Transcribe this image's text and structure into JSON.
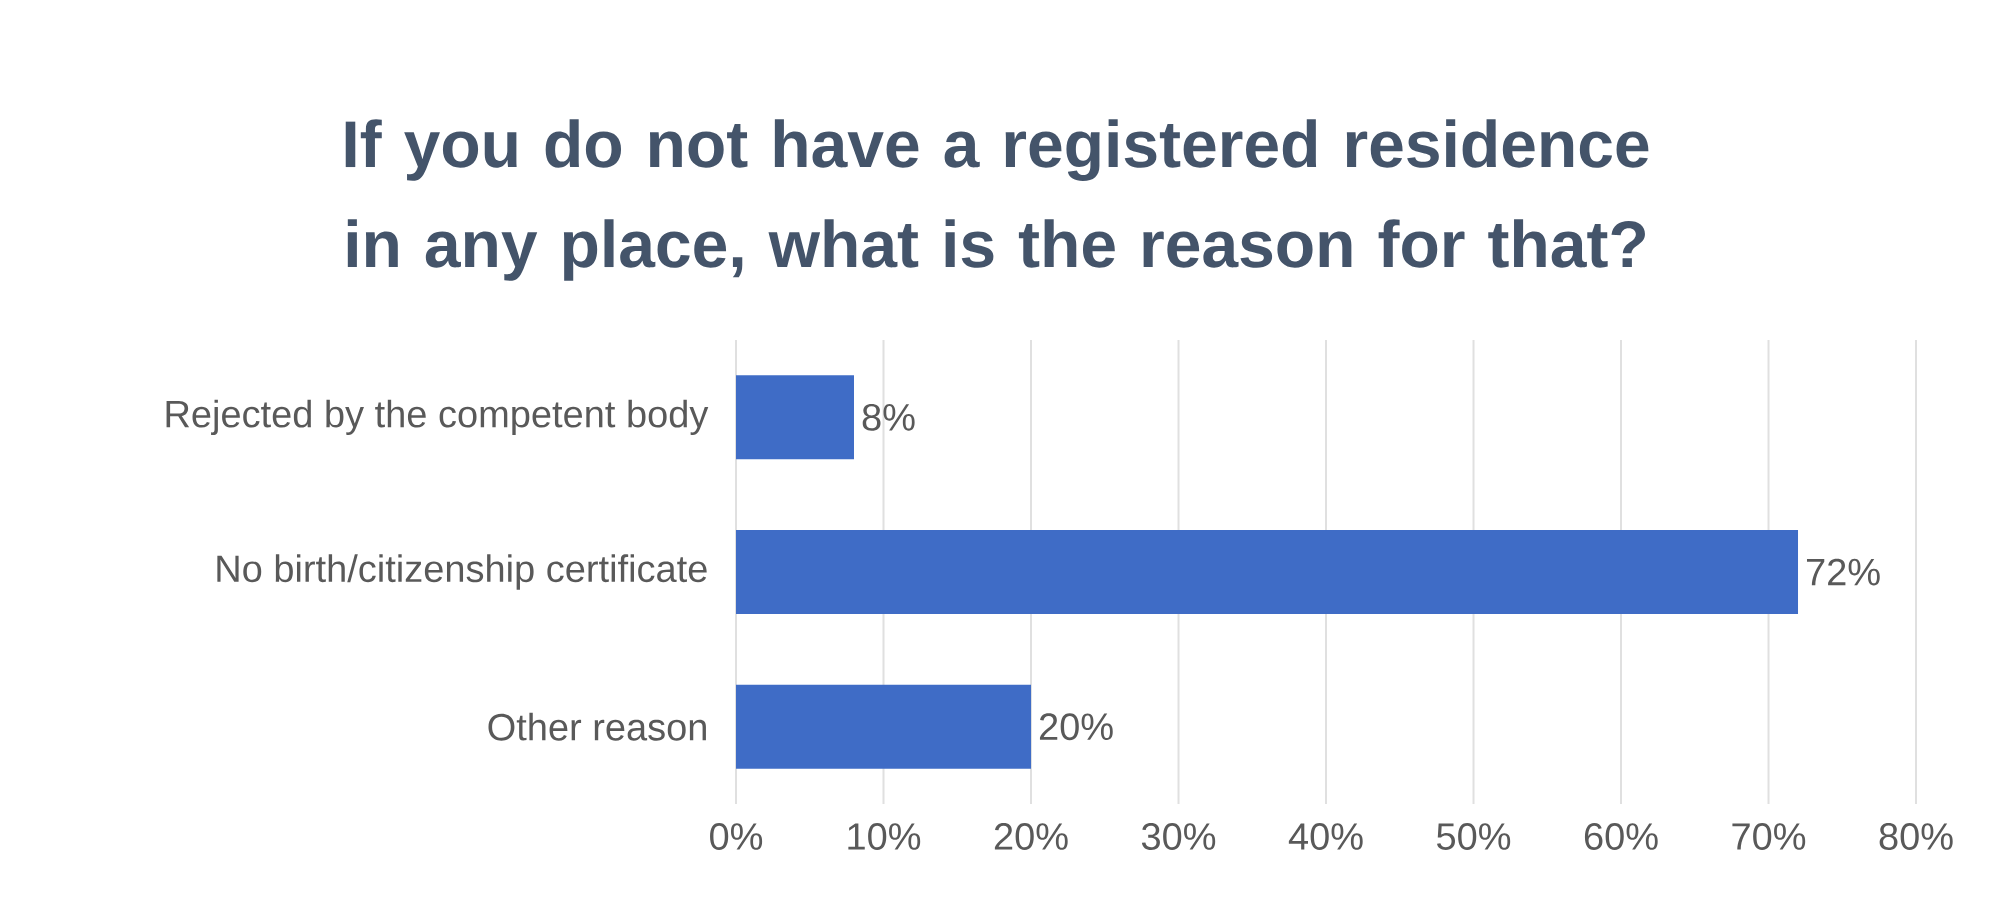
{
  "chart_data": {
    "type": "bar",
    "orientation": "horizontal",
    "title": "If you do not have a registered residence in any place, what is the reason for that?",
    "categories": [
      "Rejected by the competent body",
      "No birth/citizenship certificate",
      "Other reason"
    ],
    "values": [
      8,
      72,
      20
    ],
    "value_labels": [
      "8%",
      "72%",
      "20%"
    ],
    "color": "#3f6cc6",
    "xlim": [
      0,
      80
    ],
    "xticks": [
      {
        "value": 0,
        "label": "0%"
      },
      {
        "value": 10,
        "label": "10%"
      },
      {
        "value": 20,
        "label": "20%"
      },
      {
        "value": 30,
        "label": "30%"
      },
      {
        "value": 40,
        "label": "40%"
      },
      {
        "value": 50,
        "label": "50%"
      },
      {
        "value": 60,
        "label": "60%"
      },
      {
        "value": 70,
        "label": "70%"
      },
      {
        "value": 80,
        "label": "80%"
      }
    ],
    "grid": "x"
  }
}
